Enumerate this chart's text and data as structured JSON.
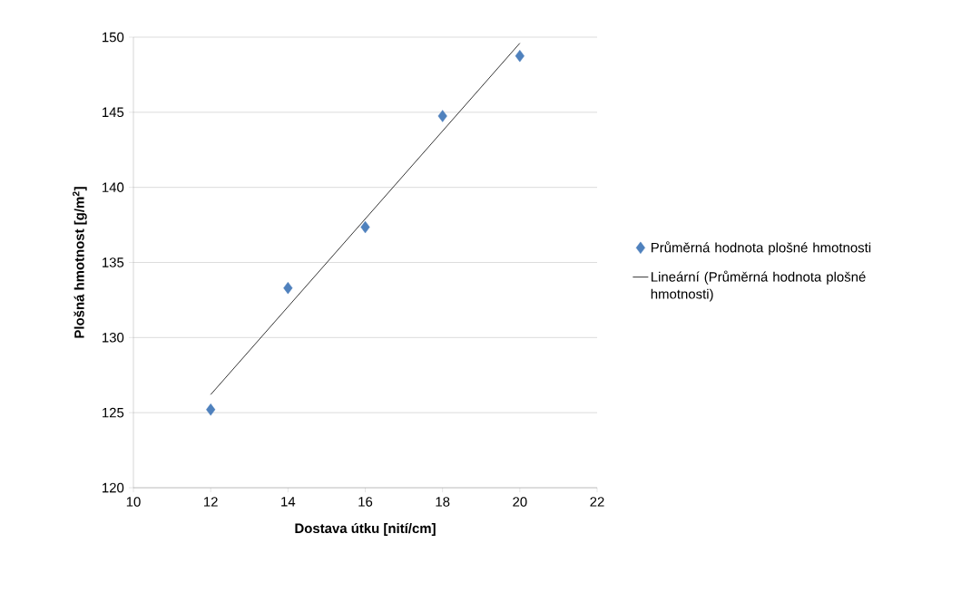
{
  "chart_data": {
    "type": "scatter",
    "xlabel": "Dostava útku [nití/cm]",
    "ylabel": "Plošná hmotnost [g/m$^{2}$]",
    "x": [
      12,
      14,
      16,
      18,
      20
    ],
    "series": [
      {
        "name": "Průměrná hodnota plošné hmotnosti",
        "color": "#4f81bd",
        "values": [
          125.2,
          133.3,
          137.35,
          144.75,
          148.75
        ]
      },
      {
        "name": "Lineární (Průměrná hodnota plošné hmotnosti)",
        "type": "line",
        "marker": "none",
        "color": "#000000",
        "x": [
          12,
          20
        ],
        "values": [
          126.2,
          149.6
        ]
      }
    ],
    "xlim": [
      10,
      22
    ],
    "ylim": [
      120,
      150
    ],
    "xticks": [
      10,
      12,
      14,
      16,
      18,
      20,
      22
    ],
    "yticks": [
      120,
      125,
      130,
      135,
      140,
      145,
      150
    ],
    "grid": "y",
    "legend": "right",
    "marker": "diamond"
  }
}
